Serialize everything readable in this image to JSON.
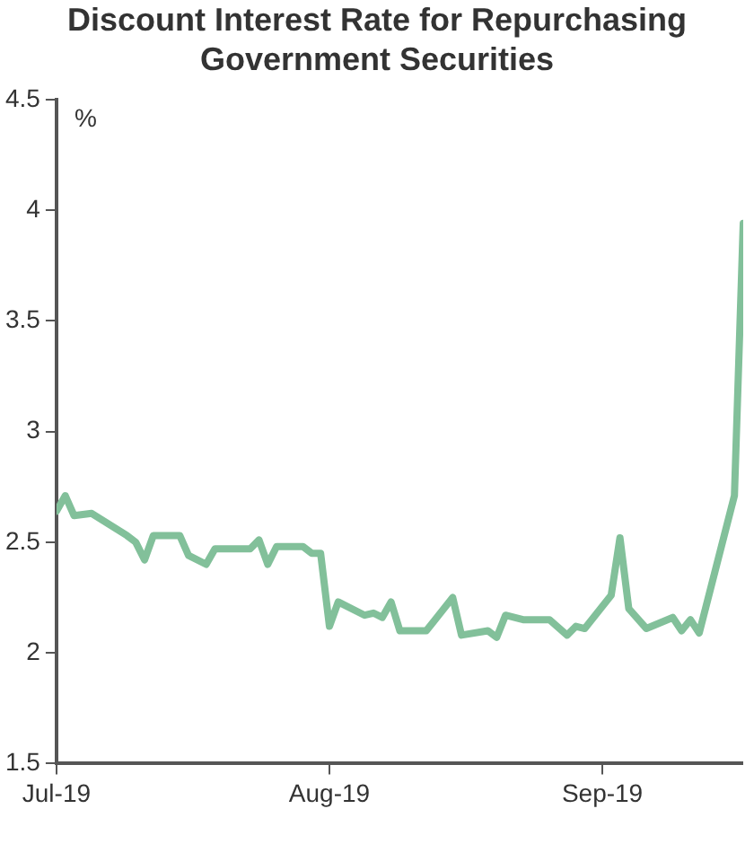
{
  "chart_data": {
    "type": "line",
    "title": "Discount Interest Rate for Repurchasing Government Securities",
    "ylabel": "%",
    "x": [
      "2019-07-01",
      "2019-07-02",
      "2019-07-03",
      "2019-07-05",
      "2019-07-09",
      "2019-07-10",
      "2019-07-11",
      "2019-07-12",
      "2019-07-15",
      "2019-07-16",
      "2019-07-18",
      "2019-07-19",
      "2019-07-23",
      "2019-07-24",
      "2019-07-25",
      "2019-07-26",
      "2019-07-29",
      "2019-07-30",
      "2019-07-31",
      "2019-08-01",
      "2019-08-02",
      "2019-08-05",
      "2019-08-06",
      "2019-08-07",
      "2019-08-08",
      "2019-08-09",
      "2019-08-12",
      "2019-08-13",
      "2019-08-15",
      "2019-08-16",
      "2019-08-19",
      "2019-08-20",
      "2019-08-21",
      "2019-08-23",
      "2019-08-26",
      "2019-08-28",
      "2019-08-29",
      "2019-08-30",
      "2019-09-02",
      "2019-09-03",
      "2019-09-04",
      "2019-09-06",
      "2019-09-09",
      "2019-09-10",
      "2019-09-11",
      "2019-09-12",
      "2019-09-16",
      "2019-09-17"
    ],
    "series": [
      {
        "color": "#82c09a",
        "values": [
          2.64,
          2.71,
          2.62,
          2.63,
          2.53,
          2.5,
          2.42,
          2.53,
          2.53,
          2.44,
          2.4,
          2.47,
          2.47,
          2.51,
          2.4,
          2.48,
          2.48,
          2.45,
          2.45,
          2.12,
          2.23,
          2.17,
          2.18,
          2.16,
          2.23,
          2.1,
          2.1,
          2.15,
          2.25,
          2.08,
          2.1,
          2.07,
          2.17,
          2.15,
          2.15,
          2.08,
          2.12,
          2.11,
          2.26,
          2.52,
          2.2,
          2.11,
          2.16,
          2.1,
          2.15,
          2.09,
          2.71,
          3.94
        ]
      }
    ],
    "xlim": [
      "2019-07-01",
      "2019-09-17"
    ],
    "xticks": [
      {
        "value": "2019-07-01",
        "label": "Jul-19"
      },
      {
        "value": "2019-08-01",
        "label": "Aug-19"
      },
      {
        "value": "2019-09-01",
        "label": "Sep-19"
      }
    ],
    "ylim": [
      1.5,
      4.5
    ],
    "yticks": [
      1.5,
      2,
      2.5,
      3,
      3.5,
      4,
      4.5
    ],
    "grid": false,
    "legend": false,
    "marker": "none",
    "line_style": "solid"
  }
}
